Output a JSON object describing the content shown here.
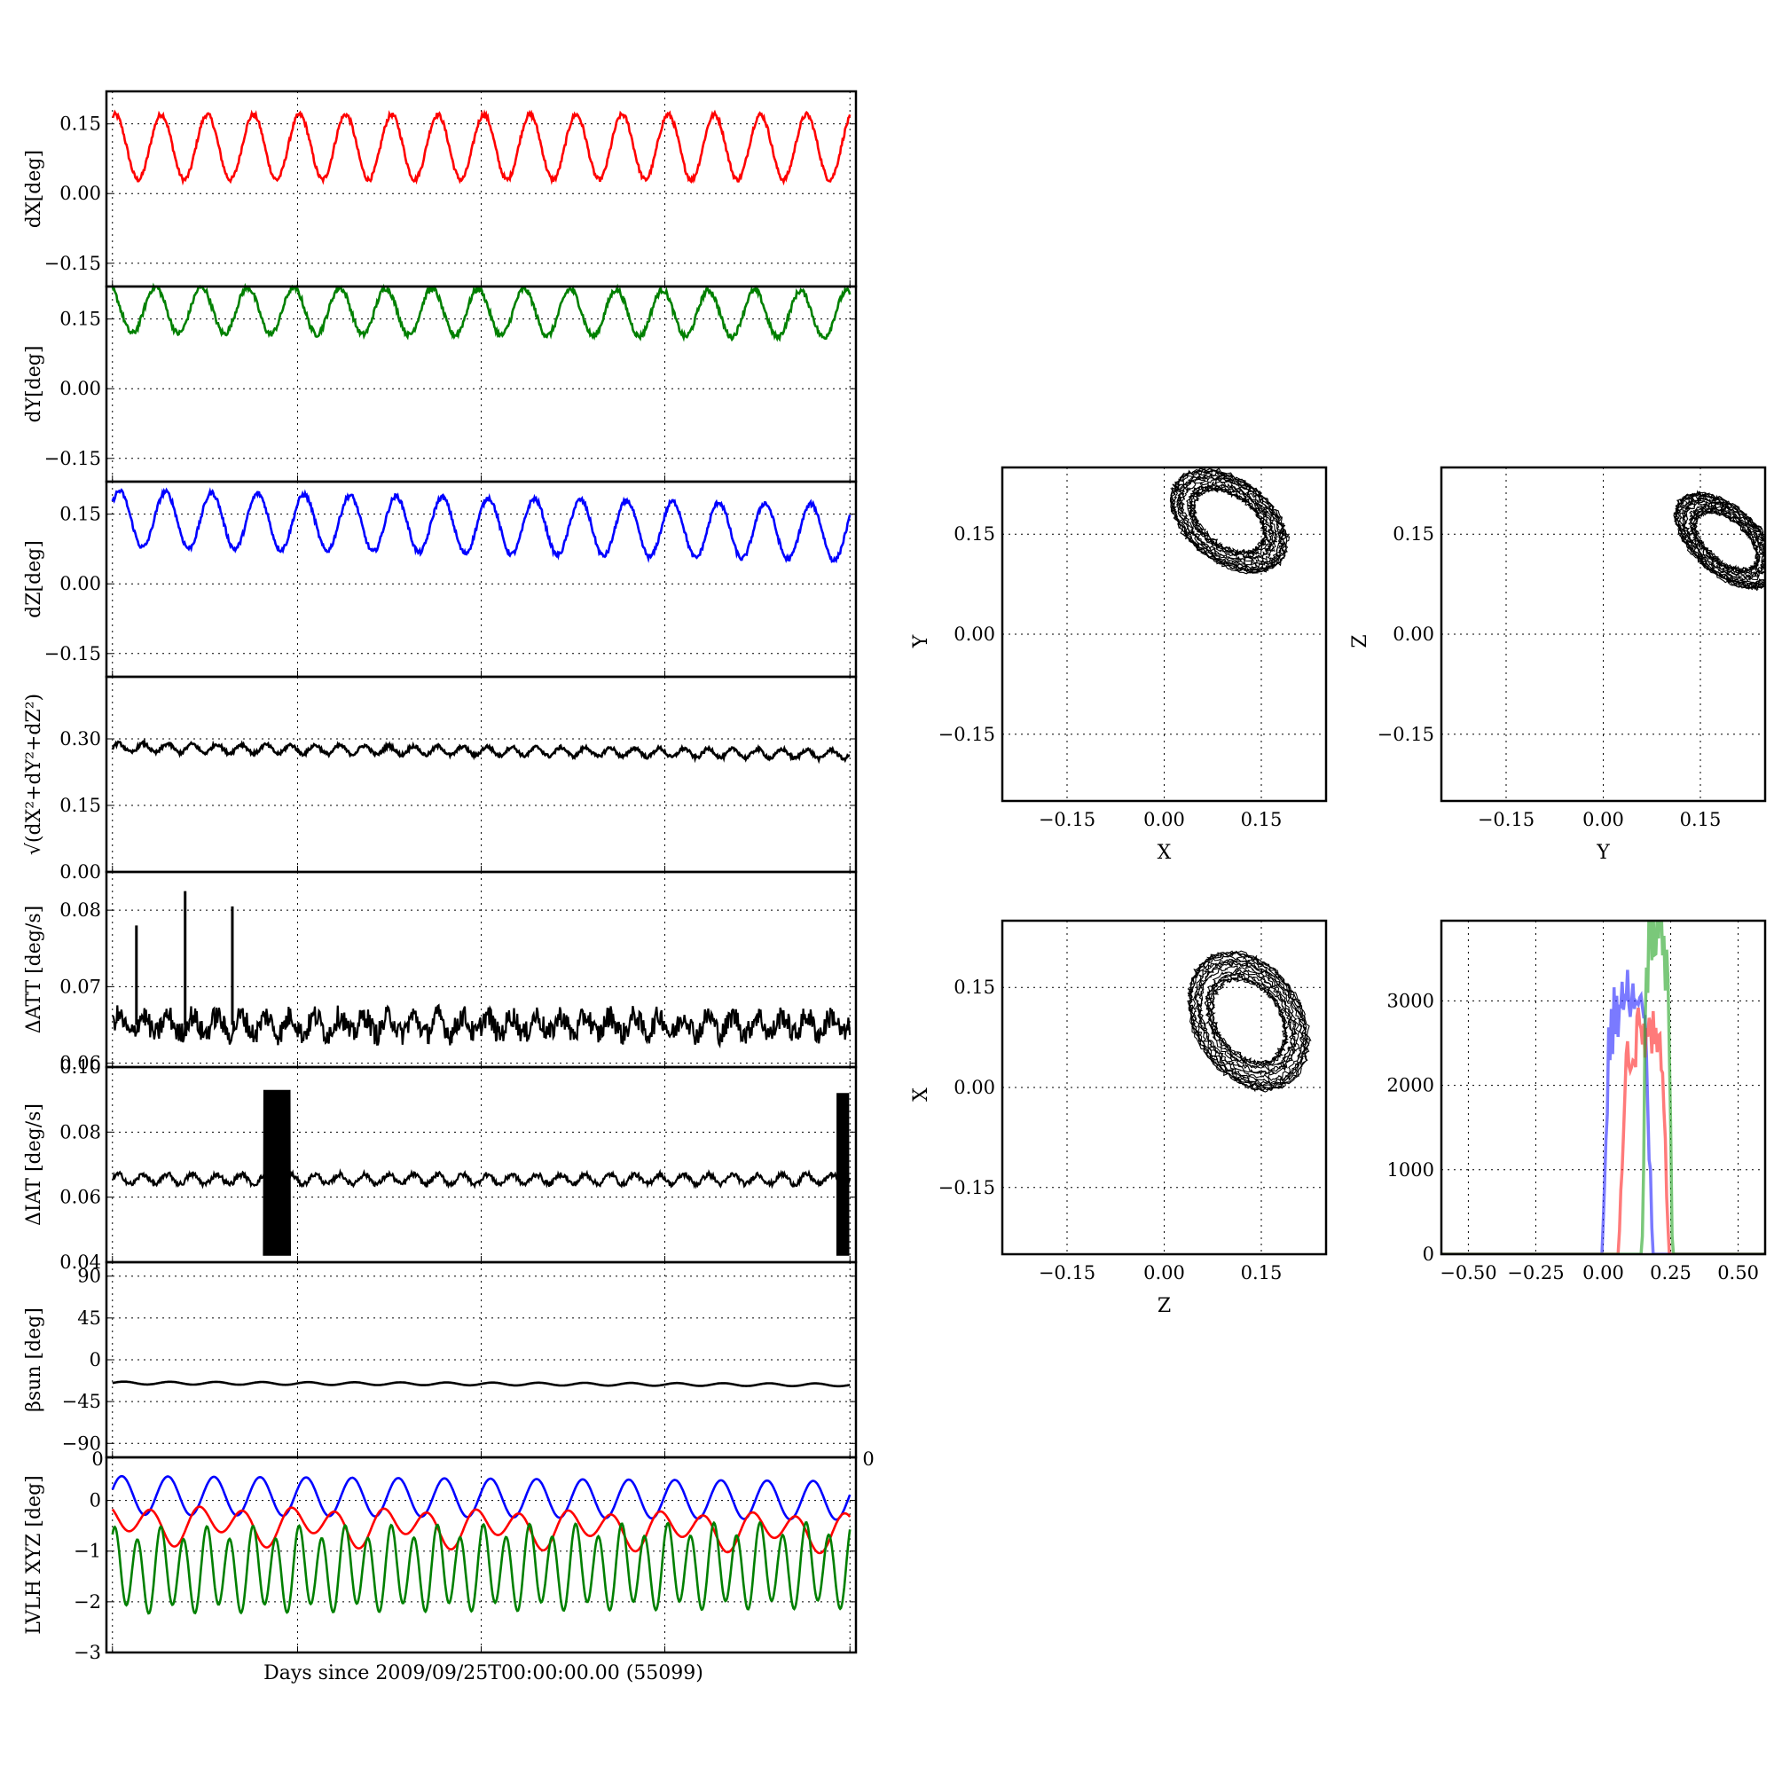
{
  "figure": {
    "xlabel": "Days since 2009/09/25T00:00:00.00 (55099)",
    "corner_tick_left": "0",
    "corner_tick_right": "0"
  },
  "chart_data": [
    {
      "id": "dx",
      "type": "line",
      "ylabel": "dX[deg]",
      "ylim": [
        -0.2,
        0.22
      ],
      "yticks": [
        -0.15,
        0.0,
        0.15
      ],
      "ytick_labels": [
        "−0.15",
        "0.00",
        "0.15"
      ],
      "grid": true,
      "color": "#ff0000",
      "series": [
        {
          "mean": 0.1,
          "amplitude": 0.07,
          "cycles": 16,
          "phase": 1.2,
          "noise": 0.005,
          "trend": 0.0
        }
      ]
    },
    {
      "id": "dy",
      "type": "line",
      "ylabel": "dY[deg]",
      "ylim": [
        -0.2,
        0.22
      ],
      "yticks": [
        -0.15,
        0.0,
        0.15
      ],
      "ytick_labels": [
        "−0.15",
        "0.00",
        "0.15"
      ],
      "grid": true,
      "color": "#008000",
      "series": [
        {
          "mean": 0.17,
          "amplitude": 0.05,
          "cycles": 16,
          "phase": 2.0,
          "noise": 0.006,
          "trend": -0.01
        }
      ]
    },
    {
      "id": "dz",
      "type": "line",
      "ylabel": "dZ[deg]",
      "ylim": [
        -0.2,
        0.22
      ],
      "yticks": [
        -0.15,
        0.0,
        0.15
      ],
      "ytick_labels": [
        "−0.15",
        "0.00",
        "0.15"
      ],
      "grid": true,
      "color": "#0000ff",
      "series": [
        {
          "mean": 0.14,
          "amplitude": 0.06,
          "cycles": 16,
          "phase": 0.6,
          "noise": 0.005,
          "trend": -0.03
        }
      ]
    },
    {
      "id": "rss",
      "type": "line",
      "ylabel": "√(dX²+dY²+dZ²)",
      "ylim": [
        0.0,
        0.44
      ],
      "yticks": [
        0.0,
        0.15,
        0.3
      ],
      "ytick_labels": [
        "0.00",
        "0.15",
        "0.30"
      ],
      "grid": true,
      "color": "#000000",
      "series": [
        {
          "mean": 0.28,
          "amplitude": 0.01,
          "cycles": 30,
          "phase": 0.0,
          "noise": 0.004,
          "trend": -0.015
        }
      ]
    },
    {
      "id": "datt",
      "type": "line",
      "ylabel": "ΔATT [deg/s]",
      "ylim": [
        0.0595,
        0.085
      ],
      "yticks": [
        0.06,
        0.07,
        0.08
      ],
      "ytick_labels": [
        "0.06",
        "0.07",
        "0.08"
      ],
      "grid": true,
      "color": "#000000",
      "series": [
        {
          "mean": 0.065,
          "amplitude": 0.0012,
          "cycles": 30,
          "phase": 0.0,
          "noise": 0.0015,
          "trend": 0.0
        }
      ],
      "spikes": [
        {
          "x": 0.04,
          "y": 0.078
        },
        {
          "x": 0.105,
          "y": 0.0825
        },
        {
          "x": 0.168,
          "y": 0.0805
        }
      ]
    },
    {
      "id": "diat",
      "type": "line",
      "ylabel": "ΔIAT [deg/s]",
      "ylim": [
        0.04,
        0.1
      ],
      "yticks": [
        0.04,
        0.06,
        0.08,
        0.1
      ],
      "ytick_labels": [
        "0.04",
        "0.06",
        "0.08",
        "0.10"
      ],
      "grid": true,
      "color": "#000000",
      "series": [
        {
          "mean": 0.0655,
          "amplitude": 0.0015,
          "cycles": 30,
          "phase": 0.0,
          "noise": 0.0008,
          "trend": 0.0
        }
      ],
      "bursts": [
        {
          "x0": 0.21,
          "x1": 0.245,
          "ymin": 0.042,
          "ymax": 0.093
        },
        {
          "x0": 0.975,
          "x1": 0.99,
          "ymin": 0.042,
          "ymax": 0.092
        }
      ]
    },
    {
      "id": "beta",
      "type": "line",
      "ylabel": "βsun [deg]",
      "ylim": [
        -105,
        105
      ],
      "yticks": [
        -90,
        -45,
        0,
        45,
        90
      ],
      "ytick_labels": [
        "−90",
        "−45",
        "0",
        "45",
        "90"
      ],
      "grid": true,
      "color": "#000000",
      "series": [
        {
          "mean": -25,
          "amplitude": 1.5,
          "cycles": 16,
          "phase": 0.0,
          "noise": 0.0,
          "trend": -2.0
        }
      ]
    },
    {
      "id": "lvlh",
      "type": "line",
      "ylabel": "LVLH XYZ [deg]",
      "ylim": [
        -3.0,
        0.85
      ],
      "yticks": [
        -3,
        -2,
        -1,
        0
      ],
      "ytick_labels": [
        "−3",
        "−2",
        "−1",
        "0"
      ],
      "grid": true,
      "series": [
        {
          "color": "#0000ff",
          "mean": 0.1,
          "amplitude": 0.38,
          "cycles": 16,
          "phase": 0.3,
          "noise": 0.0,
          "trend": -0.1
        },
        {
          "color": "#ff0000",
          "mean": -0.45,
          "amplitude": 0.3,
          "cycles": 16,
          "phase": 2.5,
          "noise": 0.0,
          "trend": -0.15
        },
        {
          "color": "#008000",
          "mean": -1.4,
          "amplitude": 0.75,
          "cycles": 32,
          "phase": 1.0,
          "noise": 0.0,
          "trend": 0.1
        }
      ]
    },
    {
      "id": "xy",
      "type": "scatter",
      "xlabel": "X",
      "ylabel": "Y",
      "xlim": [
        -0.25,
        0.25
      ],
      "ylim": [
        -0.25,
        0.25
      ],
      "ticks": [
        "−0.15",
        "0.00",
        "0.15"
      ],
      "tick_values": [
        -0.15,
        0.0,
        0.15
      ],
      "grid": true,
      "color": "#000000",
      "loop": {
        "cx": 0.1,
        "cy": 0.17,
        "rx": 0.08,
        "ry": 0.05,
        "rot": -35,
        "turns": 16
      }
    },
    {
      "id": "yz",
      "type": "scatter",
      "xlabel": "Y",
      "ylabel": "Z",
      "xlim": [
        -0.25,
        0.25
      ],
      "ylim": [
        -0.25,
        0.25
      ],
      "ticks": [
        "−0.15",
        "0.00",
        "0.15"
      ],
      "tick_values": [
        -0.15,
        0.0,
        0.15
      ],
      "grid": true,
      "color": "#000000",
      "loop": {
        "cx": 0.19,
        "cy": 0.14,
        "rx": 0.075,
        "ry": 0.04,
        "rot": -40,
        "turns": 16
      }
    },
    {
      "id": "zx",
      "type": "scatter",
      "xlabel": "Z",
      "ylabel": "X",
      "xlim": [
        -0.25,
        0.25
      ],
      "ylim": [
        -0.25,
        0.25
      ],
      "ticks": [
        "−0.15",
        "0.00",
        "0.15"
      ],
      "tick_values": [
        -0.15,
        0.0,
        0.15
      ],
      "grid": true,
      "color": "#000000",
      "loop": {
        "cx": 0.13,
        "cy": 0.1,
        "rx": 0.09,
        "ry": 0.065,
        "rot": -55,
        "turns": 16
      }
    },
    {
      "id": "hist",
      "type": "histogram",
      "xlim": [
        -0.6,
        0.6
      ],
      "ylim": [
        0,
        3950
      ],
      "xticks": [
        -0.5,
        -0.25,
        0.0,
        0.25,
        0.5
      ],
      "xtick_labels": [
        "−0.50",
        "−0.25",
        "0.00",
        "0.25",
        "0.50"
      ],
      "yticks": [
        0,
        1000,
        2000,
        3000
      ],
      "ytick_labels": [
        "0",
        "1000",
        "2000",
        "3000"
      ],
      "grid": true,
      "series": [
        {
          "color": "#3333ff",
          "center": 0.09,
          "width": 0.075,
          "peak": 3000
        },
        {
          "color": "#ff3333",
          "center": 0.15,
          "width": 0.075,
          "peak": 2600
        },
        {
          "color": "#33aa33",
          "center": 0.2,
          "width": 0.045,
          "peak": 3900
        }
      ]
    }
  ]
}
